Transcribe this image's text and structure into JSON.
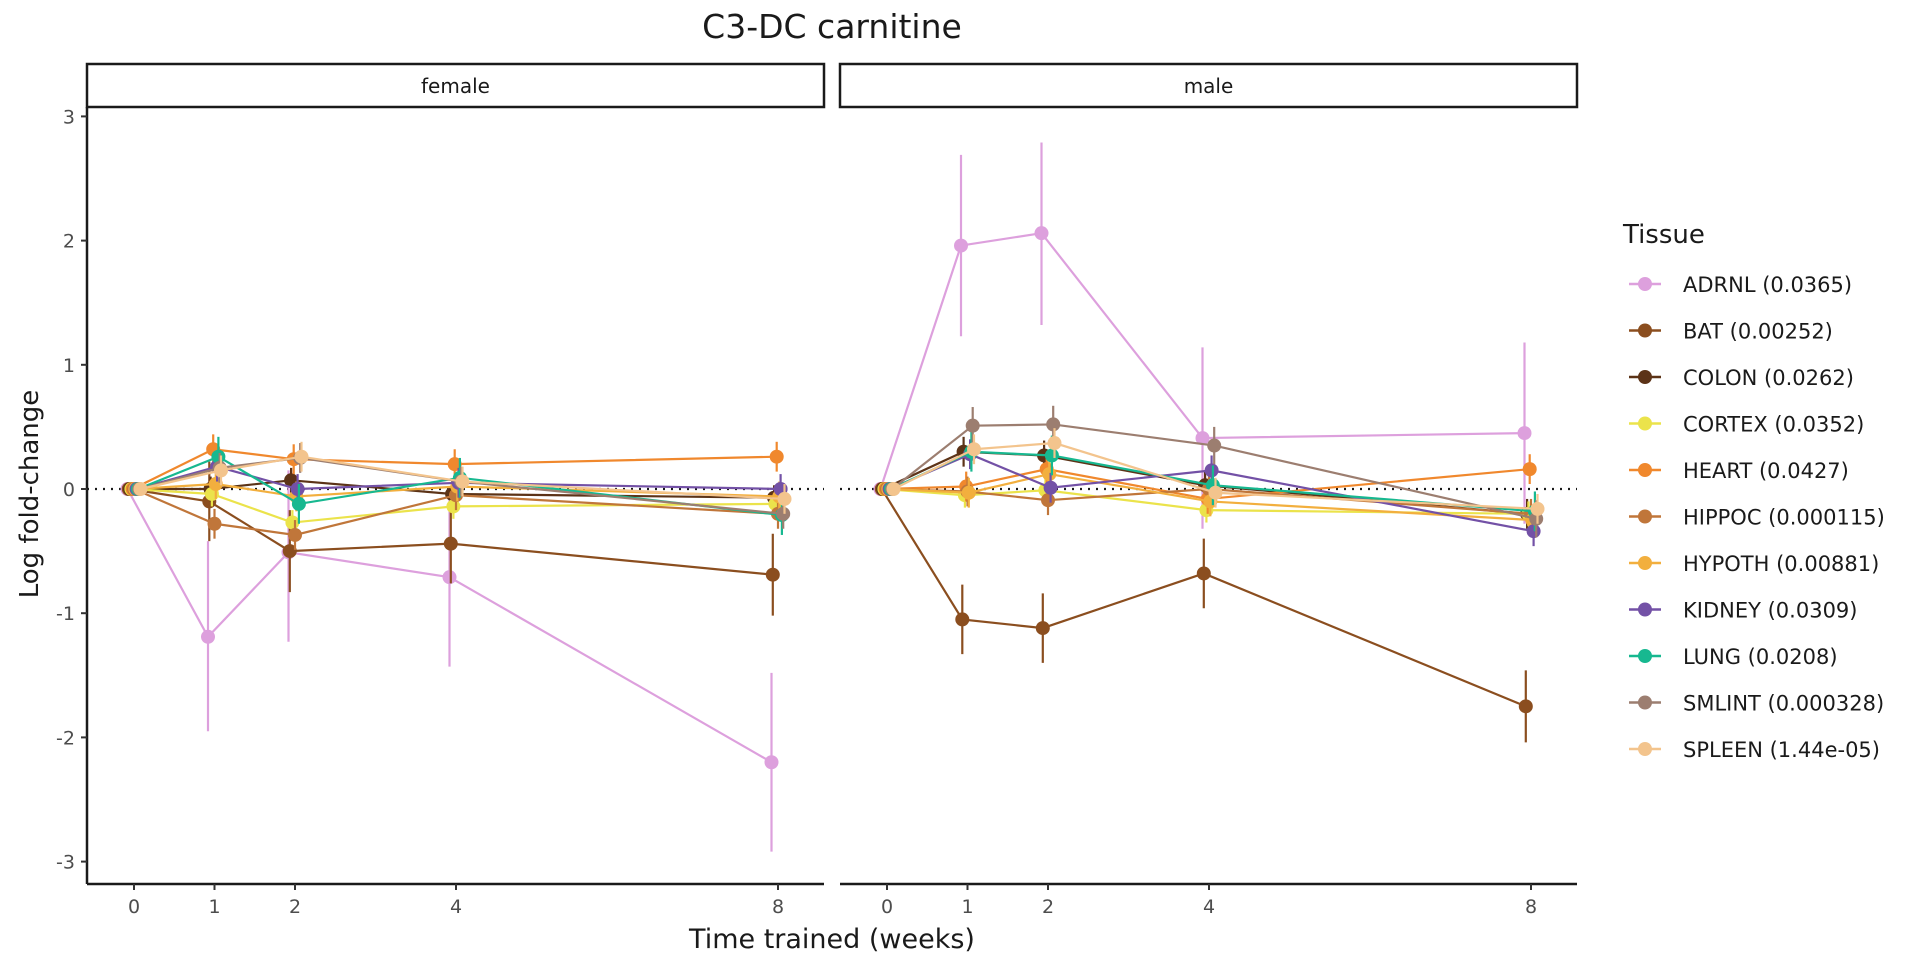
{
  "chart_data": {
    "type": "line",
    "title": "C3-DC carnitine",
    "xlabel": "Time trained (weeks)",
    "ylabel": "Log fold-change",
    "x_ticks": [
      0,
      1,
      2,
      4,
      8
    ],
    "y_ticks": [
      -3,
      -2,
      -1,
      0,
      1,
      2,
      3
    ],
    "ylim": [
      -3.2,
      3.0
    ],
    "legend_title": "Tissue",
    "legend_position": "right",
    "grid": false,
    "reference_line": 0,
    "facets": [
      "female",
      "male"
    ],
    "series": [
      {
        "name": "ADRNL (0.0365)",
        "color": "#DDA0DD",
        "female": {
          "y": [
            0,
            -1.19,
            -0.51,
            -0.71,
            -2.2
          ],
          "lo": [
            0,
            -1.95,
            -1.23,
            -1.43,
            -2.92
          ],
          "hi": [
            0,
            -0.42,
            0.15,
            0.0,
            -1.48
          ]
        },
        "male": {
          "y": [
            0,
            1.96,
            2.06,
            0.41,
            0.45
          ],
          "lo": [
            0,
            1.23,
            1.32,
            -0.32,
            -0.28
          ],
          "hi": [
            0,
            2.69,
            2.79,
            1.14,
            1.18
          ]
        }
      },
      {
        "name": "BAT (0.00252)",
        "color": "#8B4E1F",
        "female": {
          "y": [
            0,
            -0.1,
            -0.5,
            -0.44,
            -0.69
          ],
          "lo": [
            0,
            -0.42,
            -0.83,
            -0.76,
            -1.02
          ],
          "hi": [
            0,
            0.22,
            -0.17,
            -0.12,
            -0.36
          ]
        },
        "male": {
          "y": [
            0,
            -1.05,
            -1.12,
            -0.68,
            -1.75
          ],
          "lo": [
            0,
            -1.33,
            -1.4,
            -0.96,
            -2.04
          ],
          "hi": [
            0,
            -0.77,
            -0.84,
            -0.4,
            -1.46
          ]
        }
      },
      {
        "name": "COLON (0.0262)",
        "color": "#5C3317",
        "female": {
          "y": [
            0,
            0.0,
            0.07,
            -0.04,
            -0.07
          ],
          "lo": [
            0,
            -0.1,
            -0.03,
            -0.14,
            -0.17
          ],
          "hi": [
            0,
            0.1,
            0.17,
            0.06,
            0.03
          ]
        },
        "male": {
          "y": [
            0,
            0.3,
            0.27,
            0.03,
            -0.2
          ],
          "lo": [
            0,
            0.18,
            0.15,
            -0.09,
            -0.32
          ],
          "hi": [
            0,
            0.42,
            0.39,
            0.15,
            -0.08
          ]
        }
      },
      {
        "name": "CORTEX (0.0352)",
        "color": "#EBE34B",
        "female": {
          "y": [
            0,
            -0.04,
            -0.27,
            -0.14,
            -0.12
          ],
          "lo": [
            0,
            -0.14,
            -0.37,
            -0.24,
            -0.22
          ],
          "hi": [
            0,
            0.06,
            -0.17,
            -0.04,
            -0.02
          ]
        },
        "male": {
          "y": [
            0,
            -0.05,
            -0.01,
            -0.17,
            -0.2
          ],
          "lo": [
            0,
            -0.15,
            -0.11,
            -0.27,
            -0.3
          ],
          "hi": [
            0,
            0.05,
            0.09,
            -0.07,
            -0.1
          ]
        }
      },
      {
        "name": "HEART (0.0427)",
        "color": "#F0882D",
        "female": {
          "y": [
            0,
            0.32,
            0.24,
            0.2,
            0.26
          ],
          "lo": [
            0,
            0.2,
            0.12,
            0.08,
            0.14
          ],
          "hi": [
            0,
            0.44,
            0.36,
            0.32,
            0.38
          ]
        },
        "male": {
          "y": [
            0,
            0.02,
            0.16,
            -0.08,
            0.16
          ],
          "lo": [
            0,
            -0.1,
            0.04,
            -0.2,
            0.04
          ],
          "hi": [
            0,
            0.14,
            0.28,
            0.04,
            0.28
          ]
        }
      },
      {
        "name": "HIPPOC (0.000115)",
        "color": "#C0763A",
        "female": {
          "y": [
            0,
            -0.28,
            -0.37,
            -0.05,
            -0.2
          ],
          "lo": [
            0,
            -0.4,
            -0.49,
            -0.17,
            -0.32
          ],
          "hi": [
            0,
            -0.16,
            -0.25,
            0.07,
            -0.08
          ]
        },
        "male": {
          "y": [
            0,
            -0.02,
            -0.09,
            0.0,
            -0.2
          ],
          "lo": [
            0,
            -0.14,
            -0.21,
            -0.12,
            -0.32
          ],
          "hi": [
            0,
            0.1,
            0.03,
            0.12,
            -0.08
          ]
        }
      },
      {
        "name": "HYPOTH (0.00881)",
        "color": "#F2AF3E",
        "female": {
          "y": [
            0,
            0.04,
            -0.06,
            0.02,
            -0.06
          ],
          "lo": [
            0,
            -0.08,
            -0.18,
            -0.1,
            -0.18
          ],
          "hi": [
            0,
            0.16,
            0.06,
            0.14,
            0.06
          ]
        },
        "male": {
          "y": [
            0,
            -0.03,
            0.12,
            -0.1,
            -0.25
          ],
          "lo": [
            0,
            -0.15,
            0.0,
            -0.22,
            -0.37
          ],
          "hi": [
            0,
            0.09,
            0.24,
            0.02,
            -0.13
          ]
        }
      },
      {
        "name": "KIDNEY (0.0309)",
        "color": "#7351A6",
        "female": {
          "y": [
            0,
            0.18,
            0.0,
            0.05,
            0.0
          ],
          "lo": [
            0,
            0.06,
            -0.12,
            -0.07,
            -0.12
          ],
          "hi": [
            0,
            0.3,
            0.12,
            0.17,
            0.12
          ]
        },
        "male": {
          "y": [
            0,
            0.28,
            0.01,
            0.15,
            -0.34
          ],
          "lo": [
            0,
            0.16,
            -0.11,
            0.03,
            -0.46
          ],
          "hi": [
            0,
            0.4,
            0.13,
            0.27,
            -0.22
          ]
        }
      },
      {
        "name": "LUNG (0.0208)",
        "color": "#17B890",
        "female": {
          "y": [
            0,
            0.26,
            -0.12,
            0.09,
            -0.21
          ],
          "lo": [
            0,
            0.1,
            -0.28,
            -0.07,
            -0.37
          ],
          "hi": [
            0,
            0.42,
            0.04,
            0.25,
            -0.05
          ]
        },
        "male": {
          "y": [
            0,
            0.3,
            0.27,
            0.03,
            -0.18
          ],
          "lo": [
            0,
            0.14,
            0.11,
            -0.13,
            -0.34
          ],
          "hi": [
            0,
            0.46,
            0.43,
            0.19,
            -0.02
          ]
        }
      },
      {
        "name": "SMLINT (0.000328)",
        "color": "#9C7E70",
        "female": {
          "y": [
            0,
            0.17,
            0.25,
            0.06,
            -0.2
          ],
          "lo": [
            0,
            0.05,
            0.13,
            -0.06,
            -0.32
          ],
          "hi": [
            0,
            0.29,
            0.37,
            0.18,
            -0.08
          ]
        },
        "male": {
          "y": [
            0,
            0.51,
            0.52,
            0.35,
            -0.24
          ],
          "lo": [
            0,
            0.36,
            0.37,
            0.2,
            -0.39
          ],
          "hi": [
            0,
            0.66,
            0.67,
            0.5,
            -0.09
          ]
        }
      },
      {
        "name": "SPLEEN (1.44e-05)",
        "color": "#F3C48D",
        "female": {
          "y": [
            0,
            0.15,
            0.26,
            0.06,
            -0.08
          ],
          "lo": [
            0,
            0.03,
            0.14,
            -0.06,
            -0.2
          ],
          "hi": [
            0,
            0.27,
            0.38,
            0.18,
            0.04
          ]
        },
        "male": {
          "y": [
            0,
            0.32,
            0.37,
            -0.03,
            -0.16
          ],
          "lo": [
            0,
            0.2,
            0.25,
            -0.15,
            -0.28
          ],
          "hi": [
            0,
            0.44,
            0.49,
            0.09,
            -0.04
          ]
        }
      }
    ]
  }
}
